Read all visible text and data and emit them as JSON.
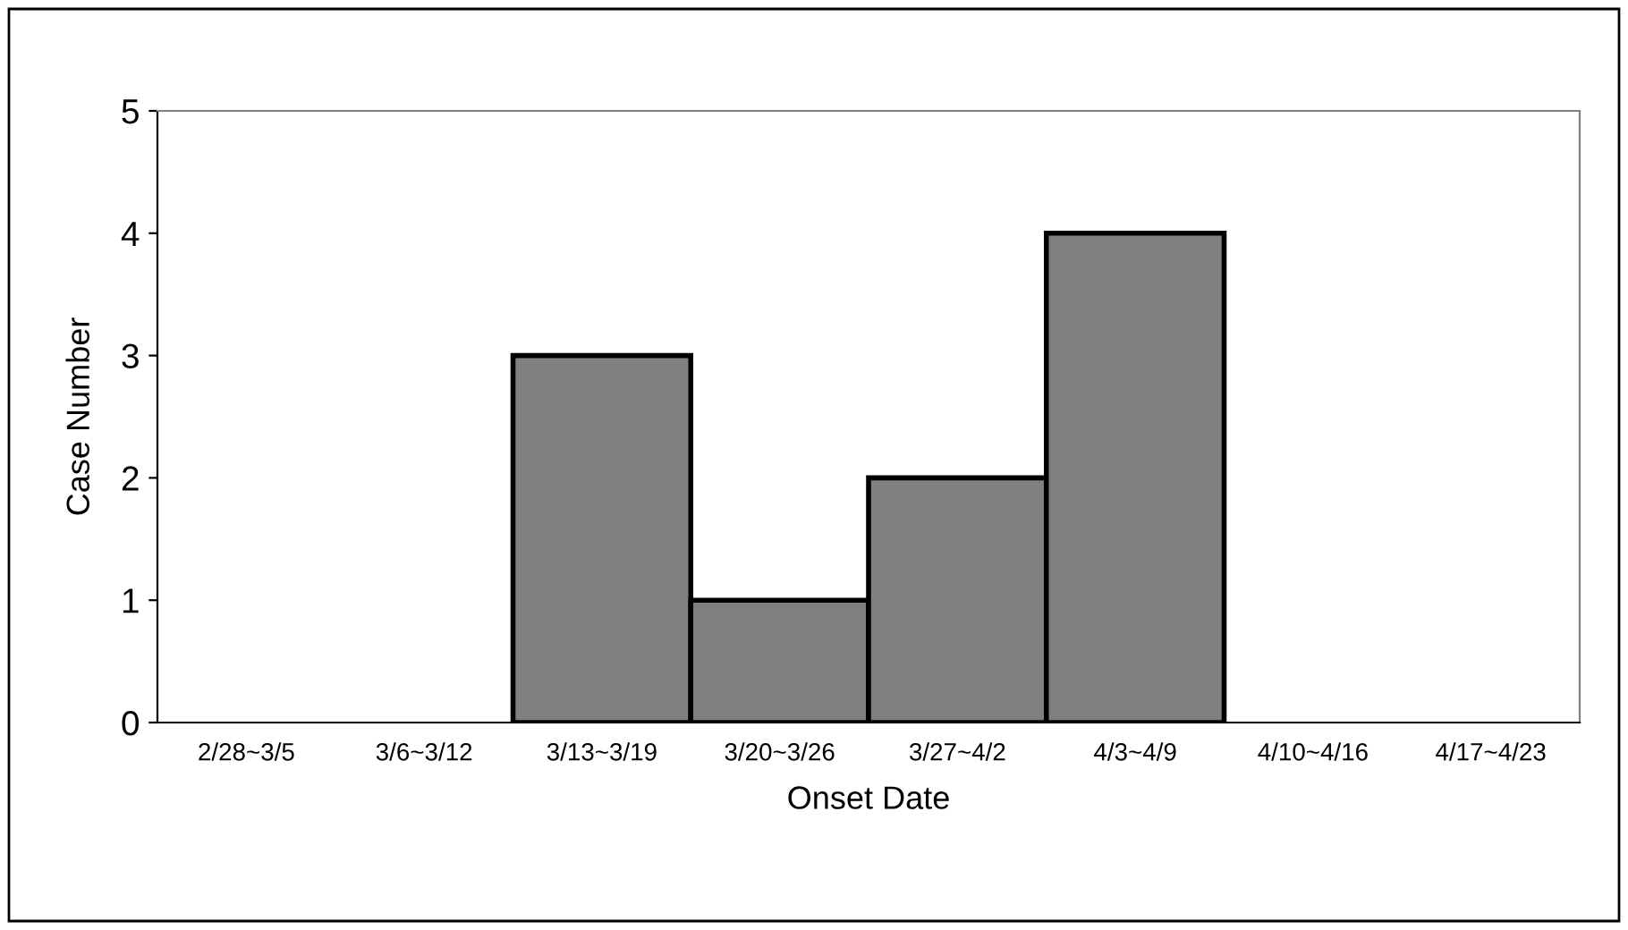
{
  "chart_data": {
    "type": "bar",
    "xlabel": "Onset Date",
    "ylabel": "Case Number",
    "categories": [
      "2/28~3/5",
      "3/6~3/12",
      "3/13~3/19",
      "3/20~3/26",
      "3/27~4/2",
      "4/3~4/9",
      "4/10~4/16",
      "4/17~4/23"
    ],
    "values": [
      0,
      0,
      3,
      1,
      2,
      4,
      0,
      0
    ],
    "color": "#808080",
    "ylim": [
      0,
      5
    ],
    "yticks": [
      0,
      1,
      2,
      3,
      4,
      5
    ],
    "grid": false,
    "legend": false
  }
}
